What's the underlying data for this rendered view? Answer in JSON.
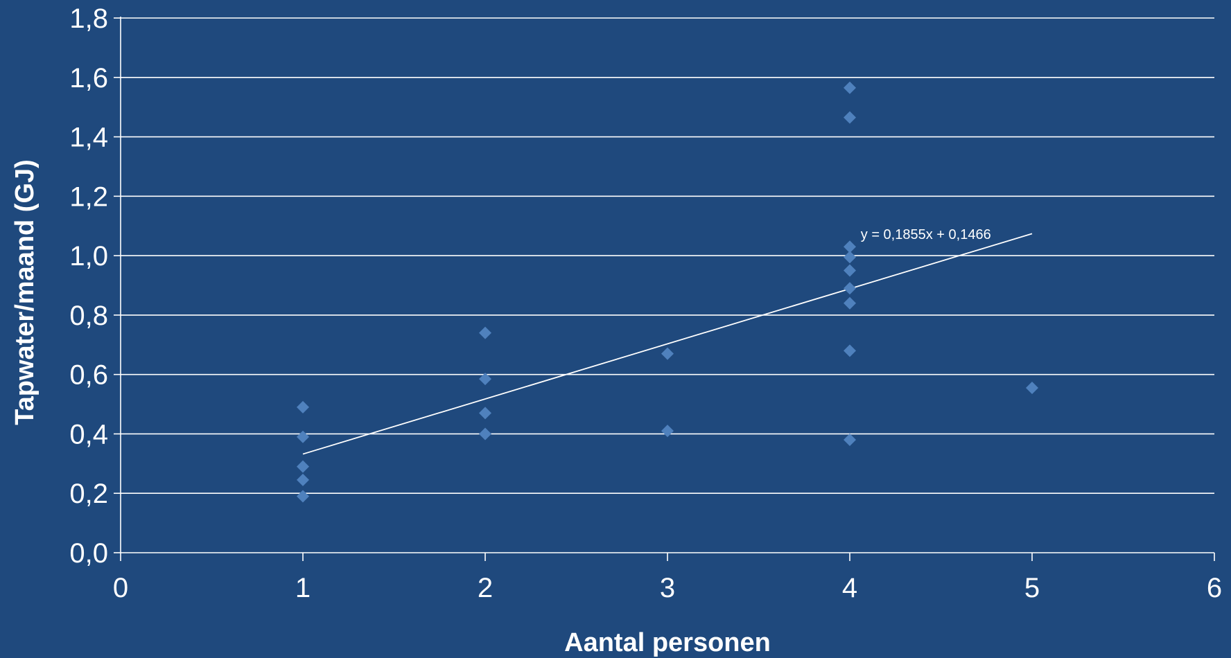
{
  "chart_data": {
    "type": "scatter",
    "title": "",
    "xlabel": "Aantal personen",
    "ylabel": "Tapwater/maand (GJ)",
    "xlim": [
      0,
      6
    ],
    "ylim": [
      0,
      1.8
    ],
    "x_ticks": [
      "0",
      "1",
      "2",
      "3",
      "4",
      "5",
      "6"
    ],
    "y_ticks": [
      "0,0",
      "0,2",
      "0,4",
      "0,6",
      "0,8",
      "1,0",
      "1,2",
      "1,4",
      "1,6",
      "1,8"
    ],
    "grid": "horizontal",
    "background_color": "#1f497d",
    "marker": "diamond",
    "marker_color": "#4f81bd",
    "series": [
      {
        "points": [
          {
            "x": 1,
            "y": 0.49
          },
          {
            "x": 1,
            "y": 0.39
          },
          {
            "x": 1,
            "y": 0.29
          },
          {
            "x": 1,
            "y": 0.245
          },
          {
            "x": 1,
            "y": 0.19
          },
          {
            "x": 2,
            "y": 0.74
          },
          {
            "x": 2,
            "y": 0.585
          },
          {
            "x": 2,
            "y": 0.47
          },
          {
            "x": 2,
            "y": 0.4
          },
          {
            "x": 3,
            "y": 0.67
          },
          {
            "x": 3,
            "y": 0.41
          },
          {
            "x": 4,
            "y": 1.565
          },
          {
            "x": 4,
            "y": 1.465
          },
          {
            "x": 4,
            "y": 1.03
          },
          {
            "x": 4,
            "y": 0.995
          },
          {
            "x": 4,
            "y": 0.95
          },
          {
            "x": 4,
            "y": 0.89
          },
          {
            "x": 4,
            "y": 0.84
          },
          {
            "x": 4,
            "y": 0.68
          },
          {
            "x": 4,
            "y": 0.38
          },
          {
            "x": 5,
            "y": 0.555
          }
        ]
      }
    ],
    "trendline": {
      "slope": 0.1855,
      "intercept": 0.1466,
      "x_range": [
        1,
        5
      ],
      "equation": "y = 0,1855x + 0,1466"
    }
  }
}
